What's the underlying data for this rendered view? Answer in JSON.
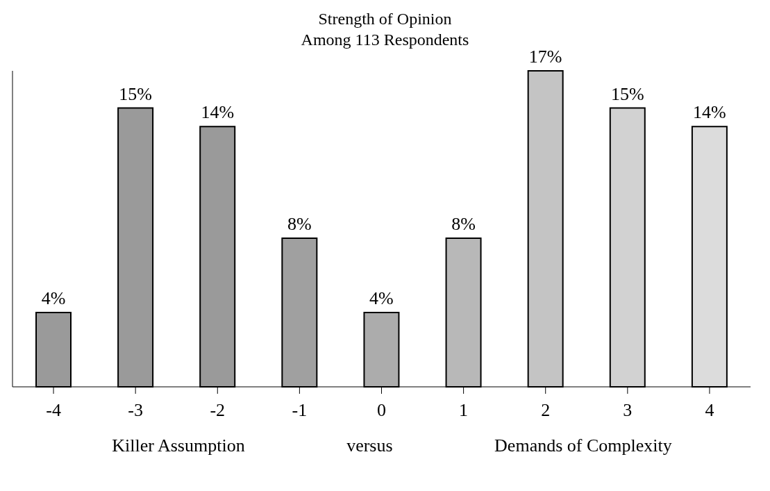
{
  "chart_data": {
    "type": "bar",
    "title": "Strength of Opinion",
    "subtitle": "Among 113 Respondents",
    "categories": [
      "-4",
      "-3",
      "-2",
      "-1",
      "0",
      "1",
      "2",
      "3",
      "4"
    ],
    "values": [
      4,
      15,
      14,
      8,
      4,
      8,
      17,
      15,
      14
    ],
    "colors": [
      "#9a9a9a",
      "#9a9a9a",
      "#9a9a9a",
      "#a0a0a0",
      "#acacac",
      "#b8b8b8",
      "#c4c4c4",
      "#d2d2d2",
      "#dcdcdc"
    ],
    "data_labels": true,
    "value_labels": [
      "4%",
      "15%",
      "14%",
      "8%",
      "4%",
      "8%",
      "17%",
      "15%",
      "14%"
    ],
    "annotations": [
      "Killer Assumption",
      "versus",
      "Demands of Complexity"
    ]
  }
}
